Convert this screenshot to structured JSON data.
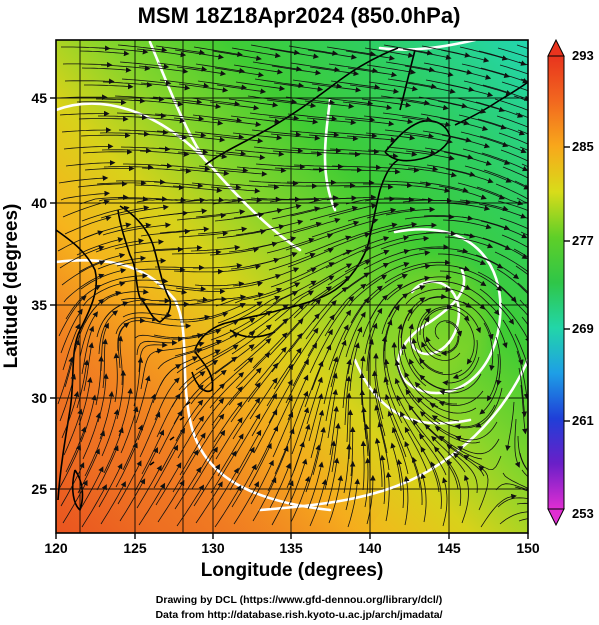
{
  "title": "MSM 18Z18Apr2024 (850.0hPa)",
  "xlabel": "Longitude (degrees)",
  "ylabel": "Latitude  (degrees)",
  "x_ticks": [
    "120",
    "125",
    "130",
    "135",
    "140",
    "145",
    "150"
  ],
  "y_ticks": [
    "25",
    "30",
    "35",
    "40",
    "45"
  ],
  "colorbar": {
    "ticks": [
      "293",
      "285",
      "277",
      "269",
      "261",
      "253"
    ],
    "min": 253,
    "max": 293
  },
  "credits": {
    "line1": "Drawing by DCL (https://www.gfd-dennou.org/library/dcl/)",
    "line2": "Data from http://database.rish.kyoto-u.ac.jp/arch/jmadata/"
  },
  "map": {
    "lon_range": [
      120,
      150
    ],
    "lat_range": [
      22.4,
      47.6
    ],
    "field": "temperature (K) with wind streamlines",
    "low_center_lonlat": [
      143.5,
      34.2
    ],
    "colors": {
      "warm": "#e6462a",
      "mid": "#2fc62f",
      "cool": "#2fd8b8",
      "contour": "#ffffff",
      "coast": "#000000"
    }
  }
}
